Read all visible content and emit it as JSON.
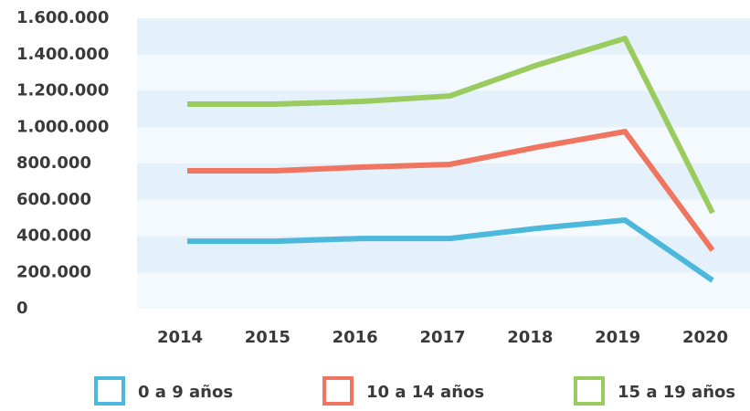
{
  "chart_data": {
    "type": "line",
    "categories": [
      "2014",
      "2015",
      "2016",
      "2017",
      "2018",
      "2019",
      "2020"
    ],
    "series": [
      {
        "name": "0 a 9 años",
        "color": "#4bb8dc",
        "values": [
          372000,
          372000,
          387000,
          387000,
          443000,
          488000,
          156000
        ]
      },
      {
        "name": "10 a 14 años",
        "color": "#ef7560",
        "values": [
          760000,
          760000,
          780000,
          795000,
          890000,
          976000,
          322000
        ]
      },
      {
        "name": "15 a 19 años",
        "color": "#9acb5e",
        "values": [
          1127000,
          1127000,
          1142000,
          1172000,
          1343000,
          1489000,
          528000
        ]
      }
    ],
    "ylim": [
      0,
      1600000
    ],
    "yticks": [
      0,
      {
        "value": 200000,
        "label": "200.000"
      },
      {
        "value": 400000,
        "label": "400.000"
      },
      {
        "value": 600000,
        "label": "600.000"
      },
      {
        "value": 800000,
        "label": "800.000"
      },
      {
        "value": 1000000,
        "label": "1.000.000"
      },
      {
        "value": 1200000,
        "label": "1.200.000"
      },
      {
        "value": 1400000,
        "label": "1.400.000"
      },
      {
        "value": 1600000,
        "label": "1.600.000"
      }
    ],
    "grid": true,
    "legend": "bottom"
  }
}
